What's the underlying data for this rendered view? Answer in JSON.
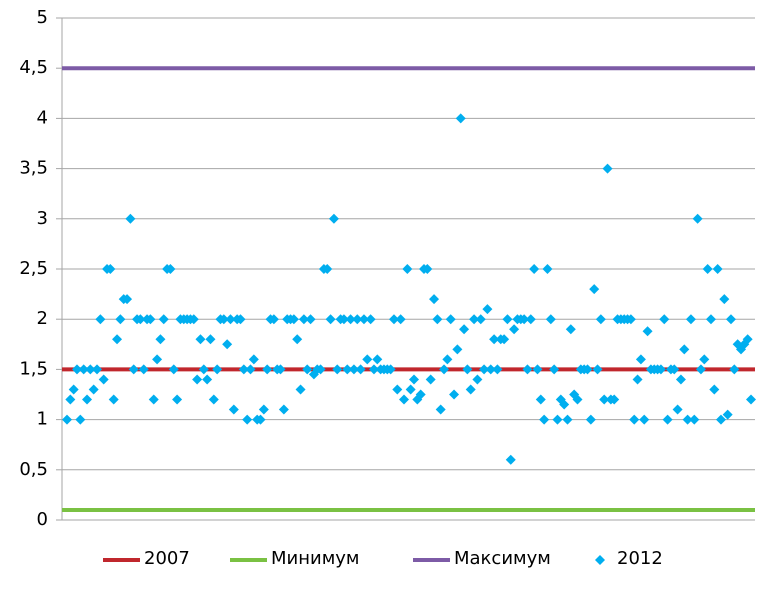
{
  "chart_data": {
    "type": "scatter",
    "ylim": [
      0,
      5
    ],
    "yticks": [
      0,
      {
        "value": 0.5,
        "label": "0,5"
      },
      1,
      {
        "value": 1.5,
        "label": "1,5"
      },
      2,
      {
        "value": 2.5,
        "label": "2,5"
      },
      3,
      {
        "value": 3.5,
        "label": "3,5"
      },
      4,
      {
        "value": 4.5,
        "label": "4,5"
      },
      5
    ],
    "grid": true,
    "legend": "bottom",
    "series": [
      {
        "name": "2007",
        "type": "hline",
        "color": "#c0272d",
        "value": 1.5
      },
      {
        "name": "Минимум",
        "type": "hline",
        "color": "#7ac143",
        "value": 0.1
      },
      {
        "name": "Максимум",
        "type": "hline",
        "color": "#7d5ba6",
        "value": 4.5
      },
      {
        "name": "2012",
        "type": "scatter",
        "color": "#00aeef",
        "values": [
          1,
          1.2,
          1.3,
          1.5,
          1,
          1.5,
          1.2,
          1.5,
          1.3,
          1.5,
          2,
          1.4,
          2.5,
          2.5,
          1.2,
          1.8,
          2,
          2.2,
          2.2,
          3,
          1.5,
          2,
          2,
          1.5,
          2,
          2,
          1.2,
          1.6,
          1.8,
          2,
          2.5,
          2.5,
          1.5,
          1.2,
          2,
          2,
          2,
          2,
          2,
          1.4,
          1.8,
          1.5,
          1.4,
          1.8,
          1.2,
          1.5,
          2,
          2,
          1.75,
          2,
          1.1,
          2,
          2,
          1.5,
          1,
          1.5,
          1.6,
          1,
          1,
          1.1,
          1.5,
          2,
          2,
          1.5,
          1.5,
          1.1,
          2,
          2,
          2,
          1.8,
          1.3,
          2,
          1.5,
          2,
          1.45,
          1.5,
          1.5,
          2.5,
          2.5,
          2,
          3,
          1.5,
          2,
          2,
          1.5,
          2,
          1.5,
          2,
          1.5,
          2,
          1.6,
          2,
          1.5,
          1.6,
          1.5,
          1.5,
          1.5,
          1.5,
          2,
          1.3,
          2,
          1.2,
          2.5,
          1.3,
          1.4,
          1.2,
          1.25,
          2.5,
          2.5,
          1.4,
          2.2,
          2,
          1.1,
          1.5,
          1.6,
          2,
          1.25,
          1.7,
          4,
          1.9,
          1.5,
          1.3,
          2,
          1.4,
          2,
          1.5,
          2.1,
          1.5,
          1.8,
          1.5,
          1.8,
          1.8,
          2,
          0.6,
          1.9,
          2,
          2,
          2,
          1.5,
          2,
          2.5,
          1.5,
          1.2,
          1,
          2.5,
          2,
          1.5,
          1,
          1.2,
          1.15,
          1,
          1.9,
          1.25,
          1.2,
          1.5,
          1.5,
          1.5,
          1,
          2.3,
          1.5,
          2,
          1.2,
          3.5,
          1.2,
          1.2,
          2,
          2,
          2,
          2,
          2,
          1,
          1.4,
          1.6,
          1,
          1.88,
          1.5,
          1.5,
          1.5,
          1.5,
          2,
          1,
          1.5,
          1.5,
          1.1,
          1.4,
          1.7,
          1,
          2,
          1,
          3,
          1.5,
          1.6,
          2.5,
          2,
          1.3,
          2.5,
          1,
          2.2,
          1.05,
          2,
          1.5,
          1.75,
          1.7,
          1.75,
          1.8,
          1.2
        ]
      }
    ]
  }
}
